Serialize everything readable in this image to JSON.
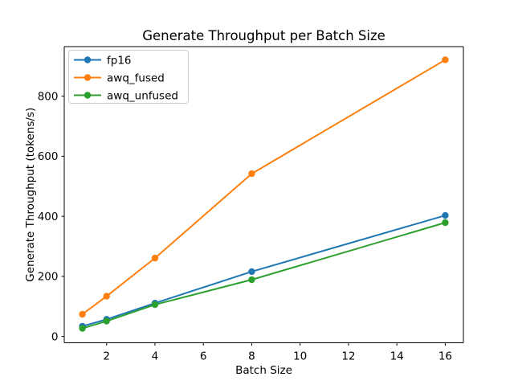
{
  "figure": {
    "background": "#ffffff"
  },
  "chart_data": {
    "type": "line",
    "title": "Generate Throughput per Batch Size",
    "xlabel": "Batch Size",
    "ylabel": "Generate Throughput (tokens/s)",
    "x": [
      1,
      2,
      4,
      8,
      16
    ],
    "series": [
      {
        "name": "fp16",
        "color": "#1f77b4",
        "values": [
          34,
          57,
          111,
          216,
          403
        ]
      },
      {
        "name": "awq_fused",
        "color": "#ff7f0e",
        "values": [
          74,
          134,
          261,
          542,
          921
        ]
      },
      {
        "name": "awq_unfused",
        "color": "#2ca02c",
        "values": [
          27,
          51,
          106,
          189,
          379
        ]
      }
    ],
    "xticks": [
      2,
      4,
      6,
      8,
      10,
      12,
      14,
      16
    ],
    "yticks": [
      0,
      200,
      400,
      600,
      800
    ],
    "xlim": [
      0.25,
      16.75
    ],
    "ylim": [
      -21,
      965
    ],
    "grid": false,
    "marker": "o",
    "legend_position": "upper left",
    "axis_color": "#000000",
    "legend_border_color": "#cccccc",
    "legend_background": "#ffffff"
  }
}
